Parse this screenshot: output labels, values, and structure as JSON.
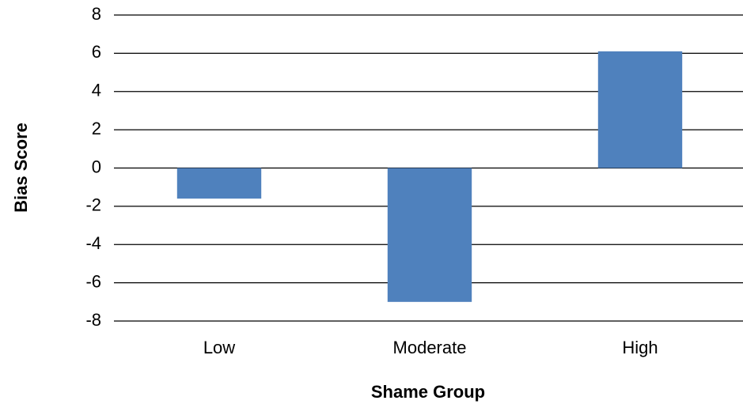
{
  "chart_data": {
    "type": "bar",
    "categories": [
      "Low",
      "Moderate",
      "High"
    ],
    "values": [
      -1.6,
      -7.0,
      6.1
    ],
    "color": "#4f81bd",
    "x_label": "Shame Group",
    "y_label": "Bias Score",
    "ylim": [
      -8,
      8
    ],
    "yticks": [
      -8,
      -6,
      -4,
      -2,
      0,
      2,
      4,
      6,
      8
    ],
    "grid": true
  }
}
